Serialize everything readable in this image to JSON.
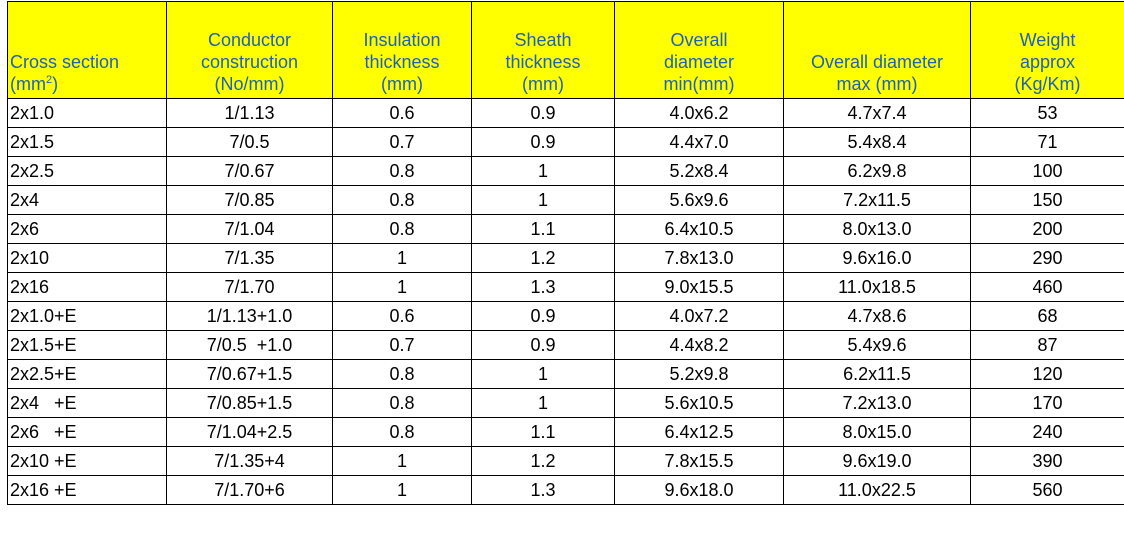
{
  "headers": [
    {
      "lines": [
        "Cross section",
        "(mm",
        ")"
      ],
      "sup": "2"
    },
    {
      "lines": [
        "Conductor",
        "construction",
        "(No/mm)"
      ]
    },
    {
      "lines": [
        "Insulation",
        "thickness",
        "(mm)"
      ]
    },
    {
      "lines": [
        "Sheath",
        "thickness",
        "(mm)"
      ]
    },
    {
      "lines": [
        "Overall",
        "diameter",
        "min(mm)"
      ]
    },
    {
      "lines": [
        "Overall diameter",
        "max (mm)"
      ]
    },
    {
      "lines": [
        "Weight",
        "approx",
        "(Kg/Km)"
      ]
    }
  ],
  "rows": [
    [
      "2x1.0",
      "1/1.13",
      "0.6",
      "0.9",
      "4.0x6.2",
      "4.7x7.4",
      "53"
    ],
    [
      "2x1.5",
      "7/0.5",
      "0.7",
      "0.9",
      "4.4x7.0",
      "5.4x8.4",
      "71"
    ],
    [
      "2x2.5",
      "7/0.67",
      "0.8",
      "1",
      "5.2x8.4",
      "6.2x9.8",
      "100"
    ],
    [
      "2x4",
      "7/0.85",
      "0.8",
      "1",
      "5.6x9.6",
      "7.2x11.5",
      "150"
    ],
    [
      "2x6",
      "7/1.04",
      "0.8",
      "1.1",
      "6.4x10.5",
      "8.0x13.0",
      "200"
    ],
    [
      "2x10",
      "7/1.35",
      "1",
      "1.2",
      "7.8x13.0",
      "9.6x16.0",
      "290"
    ],
    [
      "2x16",
      "7/1.70",
      "1",
      "1.3",
      "9.0x15.5",
      "11.0x18.5",
      "460"
    ],
    [
      "2x1.0+E",
      "1/1.13+1.0",
      "0.6",
      "0.9",
      "4.0x7.2",
      "4.7x8.6",
      "68"
    ],
    [
      "2x1.5+E",
      "7/0.5  +1.0",
      "0.7",
      "0.9",
      "4.4x8.2",
      "5.4x9.6",
      "87"
    ],
    [
      "2x2.5+E",
      "7/0.67+1.5",
      "0.8",
      "1",
      "5.2x9.8",
      "6.2x11.5",
      "120"
    ],
    [
      "2x4   +E",
      "7/0.85+1.5",
      "0.8",
      "1",
      "5.6x10.5",
      "7.2x13.0",
      "170"
    ],
    [
      "2x6   +E",
      "7/1.04+2.5",
      "0.8",
      "1.1",
      "6.4x12.5",
      "8.0x15.0",
      "240"
    ],
    [
      "2x10 +E",
      "7/1.35+4",
      "1",
      "1.2",
      "7.8x15.5",
      "9.6x19.0",
      "390"
    ],
    [
      "2x16 +E",
      "7/1.70+6",
      "1",
      "1.3",
      "9.6x18.0",
      "11.0x22.5",
      "560"
    ]
  ]
}
